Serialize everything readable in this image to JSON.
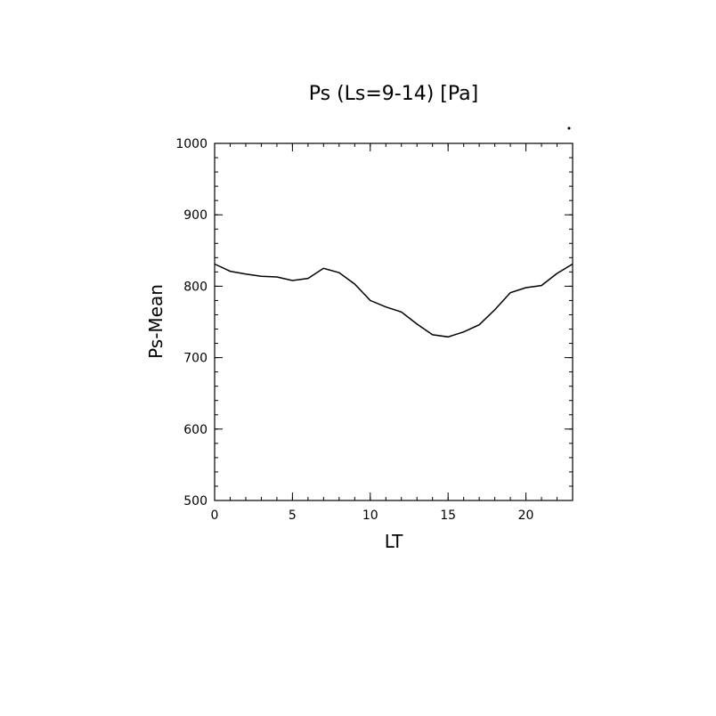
{
  "chart_data": {
    "type": "line",
    "title": "Ps (Ls=9-14) [Pa]",
    "xlabel": "LT",
    "ylabel": "Ps-Mean",
    "xlim": [
      0,
      23
    ],
    "ylim": [
      500,
      1000
    ],
    "x_ticks": [
      0,
      5,
      10,
      15,
      20
    ],
    "y_ticks": [
      500,
      600,
      700,
      800,
      900,
      1000
    ],
    "grid": false,
    "series": [
      {
        "x": [
          0,
          1,
          2,
          3,
          4,
          5,
          6,
          7,
          8,
          9,
          10,
          11,
          12,
          13,
          14,
          15,
          16,
          17,
          18,
          19,
          20,
          21,
          22,
          23
        ],
        "values": [
          831,
          821,
          817,
          814,
          813,
          808,
          811,
          825,
          819,
          803,
          780,
          771,
          764,
          747,
          732,
          729,
          736,
          746,
          767,
          791,
          798,
          801,
          818,
          831
        ]
      }
    ]
  }
}
